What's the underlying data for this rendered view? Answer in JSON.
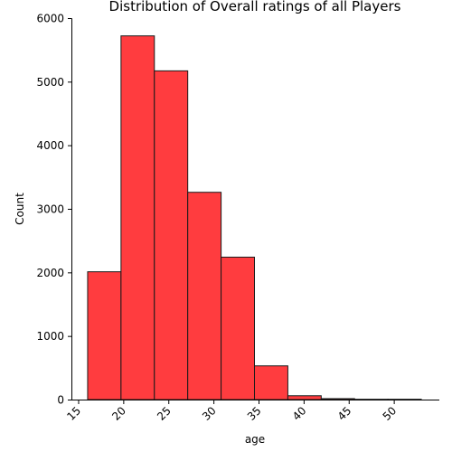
{
  "chart_data": {
    "type": "bar",
    "title": "Distribution of Overall ratings of all Players",
    "xlabel": "age",
    "ylabel": "Count",
    "xlim": [
      14.3,
      55.0
    ],
    "ylim": [
      0,
      6000
    ],
    "x_ticks": [
      15,
      20,
      25,
      30,
      35,
      40,
      45,
      50
    ],
    "y_ticks": [
      0,
      1000,
      2000,
      3000,
      4000,
      5000,
      6000
    ],
    "bin_edges": [
      16.0,
      19.7,
      23.4,
      27.1,
      30.8,
      34.5,
      38.2,
      41.9,
      45.6,
      49.3,
      53.0
    ],
    "values": [
      2010,
      5720,
      5170,
      3260,
      2240,
      530,
      60,
      15,
      5,
      5
    ],
    "bar_color": "#ff3c3f",
    "edge_color": "#1a1a1a",
    "grid": false
  }
}
